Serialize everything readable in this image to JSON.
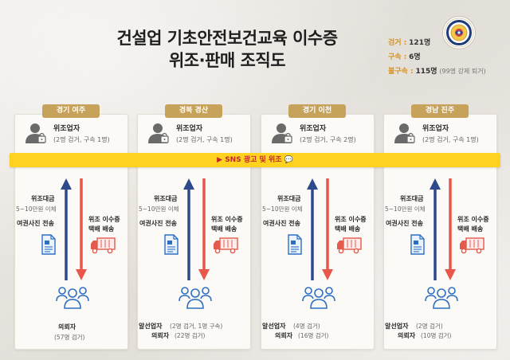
{
  "title": {
    "line1": "건설업 기초안전보건교육 이수증",
    "line2": "위조·판매 조직도"
  },
  "summary": [
    {
      "label": "검거 :",
      "value": "121명",
      "note": ""
    },
    {
      "label": "구속 :",
      "value": "6명",
      "note": ""
    },
    {
      "label": "불구속 :",
      "value": "115명",
      "note": "(99명 강제 퇴거)"
    }
  ],
  "sns_banner": "SNS 광고 및 위조",
  "common": {
    "forger": "위조업자",
    "payment": "위조대금",
    "payment_amount": "5~10만원 이체",
    "passport_send": "여권사진 전송",
    "cert_delivery_1": "위조 이수증",
    "cert_delivery_2": "택배 배송"
  },
  "regions": [
    {
      "name": "경기 여주",
      "forger_detail": "(2명 검거, 구속 1명)",
      "broker": "",
      "broker_detail": "",
      "buyer": "의뢰자",
      "buyer_detail": "(57명 검거)"
    },
    {
      "name": "경북 경산",
      "forger_detail": "(2명 검거, 구속 1명)",
      "broker": "알선업자",
      "broker_detail": "(2명 검거, 1명 구속)",
      "buyer": "의뢰자",
      "buyer_detail": "(22명 검거)"
    },
    {
      "name": "경기 이천",
      "forger_detail": "(2명 검거, 구속 2명)",
      "broker": "알선업자",
      "broker_detail": "(4명 검거)",
      "buyer": "의뢰자",
      "buyer_detail": "(16명 검거)"
    },
    {
      "name": "경남 진주",
      "forger_detail": "(2명 검거, 구속 1명)",
      "broker": "알선업자",
      "broker_detail": "(2명 검거)",
      "buyer": "의뢰자",
      "buyer_detail": "(10명 검거)"
    }
  ],
  "colors": {
    "accent_gold": "#c7a25a",
    "label_orange": "#d9921b",
    "banner_yellow": "#ffd21f",
    "banner_text": "#c1272d",
    "arrow_up": "#2e4a8c",
    "arrow_down": "#e8584a",
    "icon_blue": "#2e6fc4",
    "truck_red": "#e25b4c"
  },
  "icons": {
    "forger": "person-with-lock-icon",
    "passport": "document-icon",
    "truck": "delivery-truck-icon",
    "buyers": "group-of-people-icon",
    "badge": "police-emblem-icon"
  }
}
